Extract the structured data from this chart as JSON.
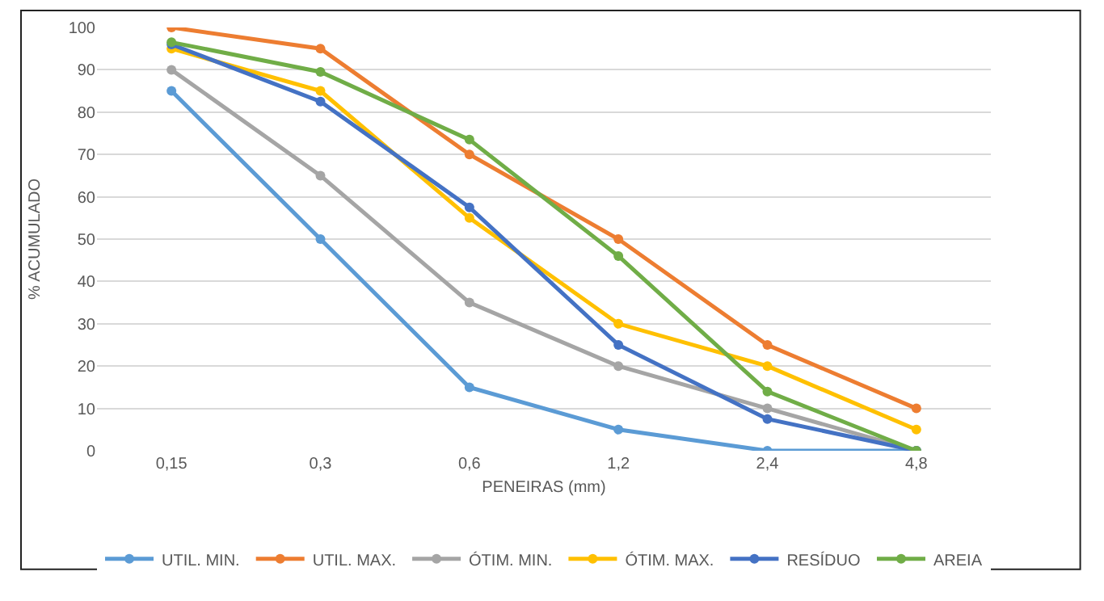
{
  "chart_data": {
    "type": "line",
    "xlabel": "PENEIRAS (mm)",
    "ylabel": "% ACUMULADO",
    "categories": [
      "0,15",
      "0,3",
      "0,6",
      "1,2",
      "2,4",
      "4,8"
    ],
    "series": [
      {
        "name": "UTIL. MIN.",
        "color": "#5b9bd5",
        "values": [
          85,
          50,
          15,
          5,
          0,
          0
        ]
      },
      {
        "name": "UTIL. MAX.",
        "color": "#ed7d31",
        "values": [
          100,
          95,
          70,
          50,
          25,
          10
        ]
      },
      {
        "name": "ÓTIM. MIN.",
        "color": "#a5a5a5",
        "values": [
          90,
          65,
          35,
          20,
          10,
          0
        ]
      },
      {
        "name": "ÓTIM. MAX.",
        "color": "#ffc000",
        "values": [
          95,
          85,
          55,
          30,
          20,
          5
        ]
      },
      {
        "name": "RESÍDUO",
        "color": "#4472c4",
        "values": [
          96,
          82.5,
          57.5,
          25,
          7.5,
          0
        ]
      },
      {
        "name": "AREIA",
        "color": "#70ad47",
        "values": [
          96.5,
          89.5,
          73.5,
          46,
          14,
          0
        ]
      }
    ],
    "ylim": [
      0,
      100
    ],
    "yticks": [
      0,
      10,
      20,
      30,
      40,
      50,
      60,
      70,
      80,
      90,
      100
    ],
    "grid": "y",
    "legend": "bottom",
    "marker": "circle",
    "line_style": "solid"
  }
}
